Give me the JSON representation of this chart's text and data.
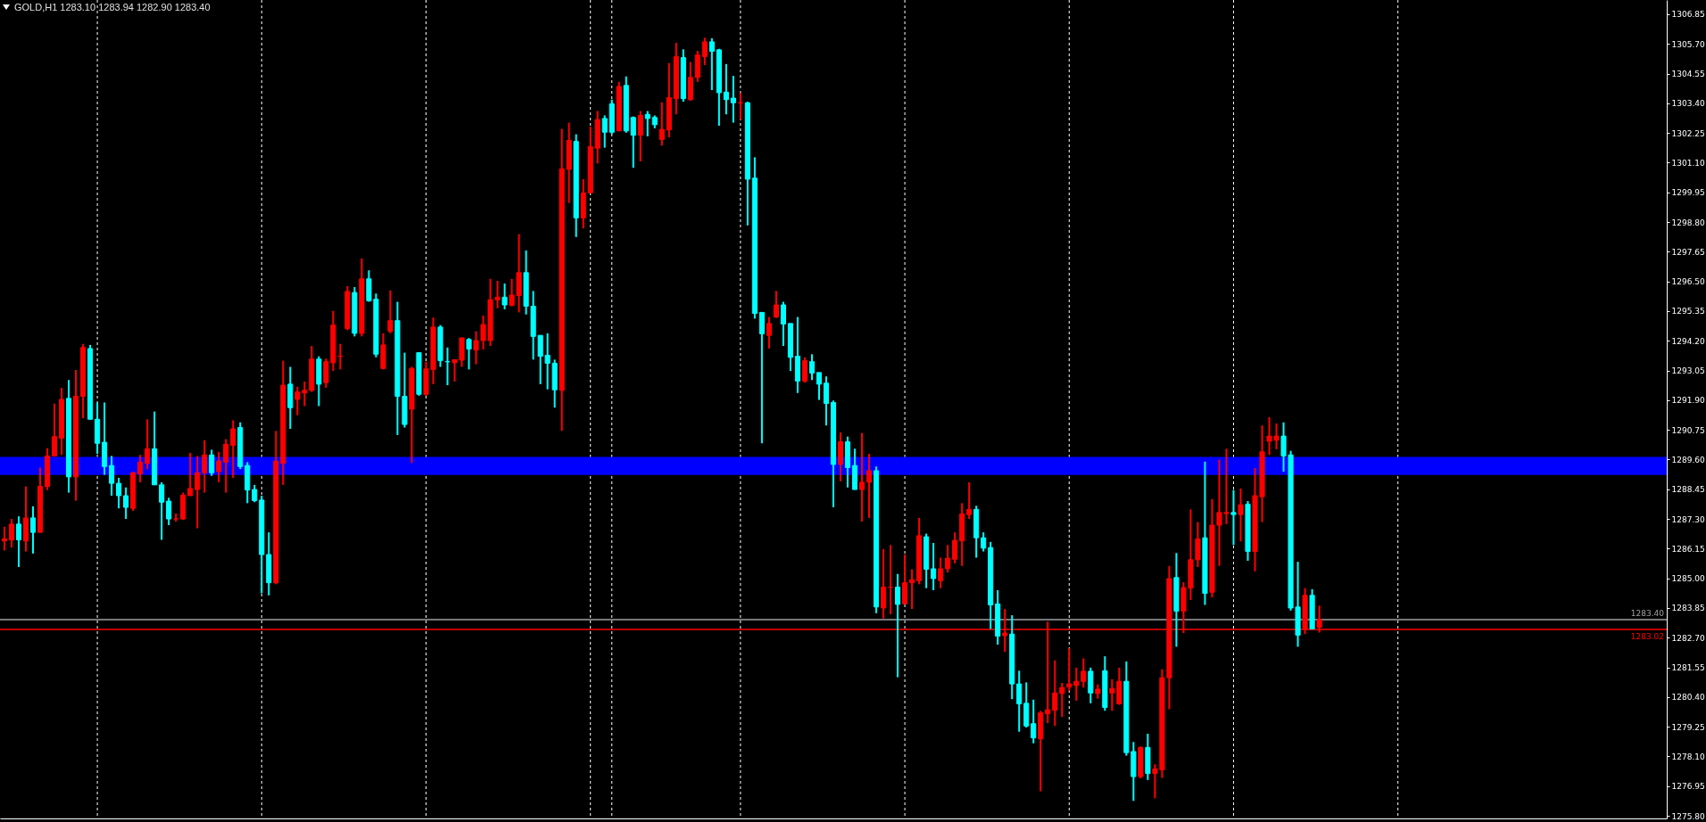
{
  "chart_data": {
    "type": "candlestick",
    "title": "GOLD,H1 1283.10 1283.94 1282.90 1283.40",
    "categories": [
      null,
      null,
      null,
      null,
      null,
      null,
      null,
      null,
      null,
      null,
      null,
      null,
      null,
      null,
      null,
      null,
      null,
      null,
      null,
      null,
      null,
      null,
      null,
      null,
      null,
      null,
      null,
      null,
      null,
      null,
      null,
      null,
      null,
      null,
      null,
      null,
      null,
      null,
      null,
      null,
      null,
      null,
      null,
      null,
      null,
      null,
      null,
      null,
      null,
      null,
      null,
      null,
      null,
      null,
      null,
      null,
      null,
      null,
      null,
      null,
      null,
      null,
      null,
      null,
      null,
      null,
      null,
      null,
      null,
      null,
      null,
      null,
      null,
      null,
      null,
      null,
      null,
      null,
      null,
      null,
      null,
      null,
      null,
      null,
      null,
      null,
      null,
      null,
      null,
      null,
      null,
      null,
      null,
      null,
      null,
      null,
      null,
      null,
      null,
      null,
      null,
      null,
      null,
      null,
      null,
      null,
      null,
      null,
      null,
      null,
      null,
      null,
      null,
      null,
      null,
      null,
      null,
      null,
      null,
      null,
      null,
      null,
      null,
      null,
      null,
      null,
      null,
      null,
      null,
      null,
      null,
      null,
      null,
      null,
      null,
      null,
      null,
      null,
      null,
      null,
      null,
      null,
      null,
      null,
      null,
      null,
      null,
      null,
      null,
      null,
      null,
      null,
      null,
      null,
      null,
      null,
      null,
      null,
      null,
      null,
      null,
      null,
      null,
      null,
      null,
      null,
      null,
      null,
      null,
      null,
      null,
      null,
      null,
      null,
      null,
      null,
      null,
      null,
      null,
      null,
      null,
      null,
      null,
      null,
      null,
      null,
      null,
      null,
      null,
      null,
      null,
      null,
      null,
      null,
      null,
      null,
      null,
      null,
      null,
      null,
      null,
      null,
      null,
      null,
      null,
      null,
      null,
      null,
      null,
      null,
      null,
      null,
      null,
      null,
      null,
      null,
      null,
      null,
      null,
      null,
      null,
      null,
      null,
      null,
      null,
      null,
      null,
      null,
      null,
      null,
      null,
      null,
      null
    ],
    "ohlc": [
      [
        1286.45,
        1287.0,
        1286.08,
        1286.53
      ],
      [
        1286.49,
        1287.3,
        1286.19,
        1287.1
      ],
      [
        1287.1,
        1287.4,
        1285.44,
        1286.49
      ],
      [
        1286.45,
        1288.56,
        1286.04,
        1287.34
      ],
      [
        1287.34,
        1287.79,
        1285.96,
        1286.78
      ],
      [
        1286.78,
        1289.29,
        1286.78,
        1288.56
      ],
      [
        1288.56,
        1290.04,
        1288.42,
        1289.74
      ],
      [
        1289.74,
        1291.77,
        1289.74,
        1290.49
      ],
      [
        1290.43,
        1292.38,
        1289.78,
        1291.93
      ],
      [
        1291.97,
        1292.68,
        1288.32,
        1288.93
      ],
      [
        1288.93,
        1293.07,
        1288.01,
        1292.05
      ],
      [
        1292.05,
        1294.08,
        1291.2,
        1293.94
      ],
      [
        1293.9,
        1294.04,
        1291.16,
        1291.16
      ],
      [
        1291.16,
        1291.81,
        1289.82,
        1290.23
      ],
      [
        1290.27,
        1291.81,
        1289.01,
        1289.33
      ],
      [
        1289.37,
        1289.74,
        1288.2,
        1288.68
      ],
      [
        1288.68,
        1288.89,
        1287.71,
        1288.2
      ],
      [
        1288.2,
        1288.52,
        1287.3,
        1287.75
      ],
      [
        1287.71,
        1289.13,
        1287.61,
        1289.09
      ],
      [
        1289.05,
        1289.78,
        1288.72,
        1289.5
      ],
      [
        1289.45,
        1291.16,
        1289.23,
        1290.02
      ],
      [
        1290.02,
        1291.46,
        1288.62,
        1288.62
      ],
      [
        1288.62,
        1288.72,
        1286.49,
        1287.95
      ],
      [
        1287.99,
        1288.12,
        1287.06,
        1287.3
      ],
      [
        1287.3,
        1287.51,
        1287.2,
        1287.3
      ],
      [
        1287.3,
        1288.32,
        1287.26,
        1288.22
      ],
      [
        1288.2,
        1289.86,
        1288.2,
        1288.48
      ],
      [
        1288.44,
        1289.74,
        1286.94,
        1289.09
      ],
      [
        1289.09,
        1290.35,
        1288.32,
        1289.78
      ],
      [
        1289.78,
        1289.98,
        1288.97,
        1289.09
      ],
      [
        1289.13,
        1289.9,
        1288.72,
        1289.54
      ],
      [
        1289.5,
        1290.39,
        1288.32,
        1290.19
      ],
      [
        1290.15,
        1291.12,
        1288.89,
        1290.79
      ],
      [
        1290.84,
        1291.04,
        1289.23,
        1289.33
      ],
      [
        1289.37,
        1289.5,
        1287.91,
        1288.42
      ],
      [
        1288.44,
        1288.62,
        1287.95,
        1288.01
      ],
      [
        1288.03,
        1288.2,
        1284.42,
        1285.92
      ],
      [
        1285.92,
        1286.78,
        1284.34,
        1284.83
      ],
      [
        1284.83,
        1290.71,
        1284.77,
        1289.54
      ],
      [
        1289.45,
        1293.43,
        1288.62,
        1292.48
      ],
      [
        1292.52,
        1293.19,
        1290.79,
        1291.61
      ],
      [
        1291.93,
        1292.42,
        1291.32,
        1292.22
      ],
      [
        1292.18,
        1292.62,
        1291.67,
        1292.28
      ],
      [
        1292.28,
        1294.0,
        1292.22,
        1293.49
      ],
      [
        1293.49,
        1293.6,
        1291.67,
        1292.52
      ],
      [
        1292.58,
        1293.51,
        1292.38,
        1293.39
      ],
      [
        1293.35,
        1295.36,
        1293.03,
        1294.81
      ],
      [
        1293.6,
        1294.08,
        1293.09,
        1293.6
      ],
      [
        1294.67,
        1296.32,
        1294.61,
        1296.11
      ],
      [
        1296.07,
        1296.28,
        1294.37,
        1294.49
      ],
      [
        1294.49,
        1297.39,
        1294.37,
        1296.6
      ],
      [
        1296.6,
        1296.93,
        1295.71,
        1295.75
      ],
      [
        1295.81,
        1296.03,
        1293.56,
        1293.68
      ],
      [
        1293.13,
        1294.49,
        1293.09,
        1294.04
      ],
      [
        1294.57,
        1296.15,
        1294.49,
        1294.98
      ],
      [
        1294.98,
        1295.71,
        1290.55,
        1292.05
      ],
      [
        1292.05,
        1293.74,
        1290.84,
        1290.96
      ],
      [
        1291.55,
        1293.19,
        1289.47,
        1293.13
      ],
      [
        1293.74,
        1293.74,
        1292.07,
        1292.13
      ],
      [
        1292.13,
        1293.39,
        1292.07,
        1293.11
      ],
      [
        1293.09,
        1295.1,
        1292.52,
        1294.73
      ],
      [
        1294.73,
        1294.81,
        1293.19,
        1293.43
      ],
      [
        1293.39,
        1293.94,
        1292.48,
        1293.39
      ],
      [
        1293.35,
        1293.47,
        1292.62,
        1293.47
      ],
      [
        1293.45,
        1294.33,
        1293.19,
        1294.31
      ],
      [
        1294.25,
        1294.31,
        1293.09,
        1293.88
      ],
      [
        1293.84,
        1294.57,
        1293.29,
        1294.21
      ],
      [
        1294.21,
        1295.18,
        1293.86,
        1294.83
      ],
      [
        1294.21,
        1296.6,
        1294.0,
        1295.79
      ],
      [
        1295.79,
        1296.52,
        1295.46,
        1295.89
      ],
      [
        1295.89,
        1296.42,
        1295.42,
        1295.59
      ],
      [
        1295.57,
        1296.6,
        1295.54,
        1295.97
      ],
      [
        1295.95,
        1298.33,
        1295.3,
        1296.84
      ],
      [
        1296.84,
        1297.7,
        1295.22,
        1295.54
      ],
      [
        1295.54,
        1296.13,
        1293.47,
        1294.37
      ],
      [
        1294.41,
        1294.41,
        1292.52,
        1293.6
      ],
      [
        1293.64,
        1294.49,
        1292.32,
        1293.33
      ],
      [
        1293.33,
        1293.47,
        1291.61,
        1292.3
      ],
      [
        1292.28,
        1302.41,
        1290.71,
        1300.86
      ],
      [
        1300.84,
        1302.65,
        1299.54,
        1301.96
      ],
      [
        1301.92,
        1302.2,
        1298.22,
        1298.96
      ],
      [
        1298.96,
        1300.46,
        1298.55,
        1299.93
      ],
      [
        1299.93,
        1302.49,
        1299.93,
        1301.72
      ],
      [
        1301.66,
        1303.1,
        1301.07,
        1302.77
      ],
      [
        1302.81,
        1302.93,
        1301.68,
        1302.28
      ],
      [
        1303.38,
        1303.54,
        1302.2,
        1302.28
      ],
      [
        1302.33,
        1304.23,
        1302.33,
        1304.05
      ],
      [
        1304.09,
        1304.44,
        1302.26,
        1302.33
      ],
      [
        1302.85,
        1302.89,
        1300.9,
        1302.16
      ],
      [
        1302.16,
        1303.1,
        1301.15,
        1302.93
      ],
      [
        1302.97,
        1303.1,
        1302.12,
        1302.81
      ],
      [
        1302.85,
        1302.93,
        1302.43,
        1302.57
      ],
      [
        1302.0,
        1303.44,
        1301.76,
        1302.39
      ],
      [
        1302.37,
        1304.96,
        1302.08,
        1303.62
      ],
      [
        1303.58,
        1305.74,
        1302.97,
        1305.21
      ],
      [
        1305.17,
        1305.49,
        1303.46,
        1303.58
      ],
      [
        1303.54,
        1305.0,
        1303.5,
        1304.4
      ],
      [
        1304.4,
        1305.43,
        1304.23,
        1305.27
      ],
      [
        1305.21,
        1305.94,
        1304.88,
        1305.78
      ],
      [
        1305.78,
        1305.92,
        1303.91,
        1305.41
      ],
      [
        1305.47,
        1305.51,
        1302.53,
        1303.81
      ],
      [
        1303.83,
        1304.92,
        1302.97,
        1303.54
      ],
      [
        1303.6,
        1304.46,
        1302.65,
        1303.42
      ],
      [
        1303.42,
        1303.79,
        1302.77,
        1303.42
      ],
      [
        1303.42,
        1303.46,
        1298.67,
        1300.46
      ],
      [
        1300.5,
        1301.31,
        1295.06,
        1295.26
      ],
      [
        1295.3,
        1295.3,
        1290.23,
        1294.47
      ],
      [
        1294.41,
        1295.12,
        1293.9,
        1294.87
      ],
      [
        1295.12,
        1296.13,
        1295.08,
        1295.59
      ],
      [
        1295.59,
        1295.71,
        1294.0,
        1294.85
      ],
      [
        1294.87,
        1294.87,
        1293.03,
        1293.56
      ],
      [
        1293.6,
        1295.12,
        1292.18,
        1292.64
      ],
      [
        1292.64,
        1293.56,
        1292.58,
        1293.43
      ],
      [
        1293.39,
        1293.68,
        1292.68,
        1292.95
      ],
      [
        1292.97,
        1292.97,
        1291.91,
        1292.52
      ],
      [
        1292.56,
        1292.82,
        1290.92,
        1291.77
      ],
      [
        1291.81,
        1291.89,
        1287.75,
        1289.41
      ],
      [
        1289.41,
        1290.65,
        1288.76,
        1290.29
      ],
      [
        1290.29,
        1290.49,
        1288.52,
        1289.29
      ],
      [
        1289.37,
        1290.02,
        1288.44,
        1288.44
      ],
      [
        1288.44,
        1290.63,
        1287.2,
        1288.72
      ],
      [
        1288.72,
        1289.82,
        1287.34,
        1289.17
      ],
      [
        1289.17,
        1289.33,
        1283.65,
        1283.89
      ],
      [
        1283.85,
        1286.13,
        1283.45,
        1284.66
      ],
      [
        1284.66,
        1286.29,
        1283.61,
        1284.66
      ],
      [
        1284.66,
        1285.17,
        1281.17,
        1283.99
      ],
      [
        1284.01,
        1285.92,
        1284.01,
        1284.83
      ],
      [
        1284.83,
        1285.35,
        1283.81,
        1284.95
      ],
      [
        1284.91,
        1287.34,
        1284.77,
        1286.65
      ],
      [
        1286.61,
        1286.73,
        1284.62,
        1285.35
      ],
      [
        1285.37,
        1286.37,
        1284.54,
        1284.99
      ],
      [
        1284.91,
        1285.8,
        1284.62,
        1285.37
      ],
      [
        1285.37,
        1286.29,
        1285.23,
        1285.78
      ],
      [
        1285.74,
        1286.78,
        1285.58,
        1286.47
      ],
      [
        1286.45,
        1287.91,
        1285.48,
        1287.49
      ],
      [
        1287.47,
        1288.72,
        1287.3,
        1287.67
      ],
      [
        1287.67,
        1287.81,
        1285.8,
        1286.57
      ],
      [
        1286.57,
        1286.78,
        1286.04,
        1286.17
      ],
      [
        1286.19,
        1286.41,
        1283.04,
        1283.97
      ],
      [
        1284.01,
        1284.54,
        1282.43,
        1282.76
      ],
      [
        1282.78,
        1283.81,
        1282.15,
        1282.88
      ],
      [
        1282.84,
        1283.57,
        1280.32,
        1280.91
      ],
      [
        1280.91,
        1281.42,
        1279.06,
        1280.14
      ],
      [
        1280.16,
        1280.97,
        1279.22,
        1279.28
      ],
      [
        1279.37,
        1280.3,
        1278.61,
        1278.82
      ],
      [
        1278.78,
        1279.87,
        1276.75,
        1279.79
      ],
      [
        1279.75,
        1283.32,
        1279.39,
        1279.91
      ],
      [
        1279.89,
        1281.82,
        1279.28,
        1280.56
      ],
      [
        1280.54,
        1280.95,
        1279.63,
        1280.77
      ],
      [
        1280.79,
        1282.29,
        1280.64,
        1280.91
      ],
      [
        1280.85,
        1281.54,
        1280.26,
        1281.01
      ],
      [
        1281.01,
        1281.9,
        1280.77,
        1281.4
      ],
      [
        1281.4,
        1281.54,
        1280.16,
        1280.56
      ],
      [
        1280.54,
        1280.89,
        1280.34,
        1280.71
      ],
      [
        1281.42,
        1281.98,
        1279.87,
        1280.0
      ],
      [
        1280.56,
        1281.09,
        1279.87,
        1280.73
      ],
      [
        1280.14,
        1281.54,
        1280.1,
        1281.01
      ],
      [
        1281.01,
        1281.78,
        1278.13,
        1278.25
      ],
      [
        1278.29,
        1278.66,
        1276.38,
        1277.32
      ],
      [
        1277.32,
        1278.49,
        1277.25,
        1278.45
      ],
      [
        1278.45,
        1278.98,
        1277.19,
        1277.44
      ],
      [
        1277.44,
        1277.8,
        1276.48,
        1277.62
      ],
      [
        1277.58,
        1281.48,
        1277.27,
        1281.15
      ],
      [
        1281.15,
        1285.48,
        1279.93,
        1284.99
      ],
      [
        1285.03,
        1285.98,
        1282.35,
        1283.73
      ],
      [
        1283.73,
        1284.85,
        1282.88,
        1284.64
      ],
      [
        1284.62,
        1287.67,
        1284.16,
        1285.72
      ],
      [
        1285.72,
        1287.18,
        1285.44,
        1286.53
      ],
      [
        1286.57,
        1289.52,
        1283.97,
        1284.42
      ],
      [
        1284.46,
        1288.07,
        1284.26,
        1287.06
      ],
      [
        1287.06,
        1289.6,
        1285.48,
        1287.55
      ],
      [
        1287.51,
        1290.02,
        1287.1,
        1287.55
      ],
      [
        1287.55,
        1288.42,
        1286.29,
        1287.47
      ],
      [
        1287.47,
        1288.48,
        1286.43,
        1287.85
      ],
      [
        1287.87,
        1287.99,
        1285.68,
        1286.04
      ],
      [
        1286.04,
        1289.27,
        1285.27,
        1288.2
      ],
      [
        1288.16,
        1290.92,
        1287.18,
        1289.9
      ],
      [
        1290.31,
        1291.24,
        1289.78,
        1290.51
      ],
      [
        1290.35,
        1291.0,
        1290.0,
        1290.51
      ],
      [
        1290.51,
        1291.04,
        1289.13,
        1289.74
      ],
      [
        1289.78,
        1289.94,
        1283.75,
        1283.85
      ],
      [
        1283.89,
        1285.64,
        1282.35,
        1282.8
      ],
      [
        1283.04,
        1284.62,
        1282.84,
        1284.34
      ],
      [
        1284.34,
        1284.58,
        1283.04,
        1283.04
      ],
      [
        1283.1,
        1283.94,
        1282.9,
        1283.4
      ],
      null,
      null,
      null,
      null,
      null,
      null,
      null,
      null,
      null,
      null,
      null,
      null,
      null,
      null,
      null,
      null,
      null,
      null,
      null,
      null,
      null,
      null,
      null,
      null,
      null,
      null,
      null,
      null,
      null,
      null,
      null,
      null,
      null,
      null,
      null,
      null,
      null,
      null,
      null,
      null,
      null,
      null,
      null,
      null,
      null,
      null,
      null,
      null
    ],
    "colors": [
      "#ff0000",
      "#ff0000",
      "#00ffff",
      "#ff0000",
      "#00ffff",
      "#ff0000",
      "#ff0000",
      "#ff0000",
      "#ff0000",
      "#00ffff",
      "#ff0000",
      "#ff0000",
      "#00ffff",
      "#00ffff",
      "#00ffff",
      "#00ffff",
      "#00ffff",
      "#00ffff",
      "#ff0000",
      "#ff0000",
      "#ff0000",
      "#00ffff",
      "#00ffff",
      "#00ffff",
      "#ff0000",
      "#ff0000",
      "#ff0000",
      "#ff0000",
      "#ff0000",
      "#00ffff",
      "#ff0000",
      "#ff0000",
      "#ff0000",
      "#00ffff",
      "#00ffff",
      "#00ffff",
      "#00ffff",
      "#00ffff",
      "#ff0000",
      "#ff0000",
      "#00ffff",
      "#ff0000",
      "#ff0000",
      "#ff0000",
      "#00ffff",
      "#ff0000",
      "#ff0000",
      "#ff0000",
      "#ff0000",
      "#00ffff",
      "#ff0000",
      "#00ffff",
      "#00ffff",
      "#ff0000",
      "#ff0000",
      "#00ffff",
      "#00ffff",
      "#ff0000",
      "#00ffff",
      "#ff0000",
      "#ff0000",
      "#00ffff",
      "#00ffff",
      "#ff0000",
      "#ff0000",
      "#00ffff",
      "#ff0000",
      "#ff0000",
      "#ff0000",
      "#ff0000",
      "#00ffff",
      "#ff0000",
      "#ff0000",
      "#00ffff",
      "#00ffff",
      "#00ffff",
      "#00ffff",
      "#00ffff",
      "#ff0000",
      "#ff0000",
      "#00ffff",
      "#ff0000",
      "#ff0000",
      "#ff0000",
      "#00ffff",
      "#00ffff",
      "#ff0000",
      "#00ffff",
      "#00ffff",
      "#ff0000",
      "#00ffff",
      "#00ffff",
      "#ff0000",
      "#ff0000",
      "#ff0000",
      "#00ffff",
      "#ff0000",
      "#ff0000",
      "#ff0000",
      "#00ffff",
      "#00ffff",
      "#00ffff",
      "#00ffff",
      "#ff0000",
      "#00ffff",
      "#00ffff",
      "#00ffff",
      "#ff0000",
      "#ff0000",
      "#00ffff",
      "#00ffff",
      "#00ffff",
      "#ff0000",
      "#00ffff",
      "#00ffff",
      "#00ffff",
      "#00ffff",
      "#ff0000",
      "#00ffff",
      "#00ffff",
      "#ff0000",
      "#ff0000",
      "#00ffff",
      "#ff0000",
      "#ff0000",
      "#00ffff",
      "#ff0000",
      "#ff0000",
      "#ff0000",
      "#00ffff",
      "#00ffff",
      "#ff0000",
      "#ff0000",
      "#ff0000",
      "#ff0000",
      "#ff0000",
      "#00ffff",
      "#00ffff",
      "#00ffff",
      "#00ffff",
      "#ff0000",
      "#00ffff",
      "#00ffff",
      "#00ffff",
      "#00ffff",
      "#ff0000",
      "#ff0000",
      "#ff0000",
      "#ff0000",
      "#ff0000",
      "#ff0000",
      "#ff0000",
      "#00ffff",
      "#ff0000",
      "#00ffff",
      "#ff0000",
      "#ff0000",
      "#00ffff",
      "#00ffff",
      "#ff0000",
      "#00ffff",
      "#ff0000",
      "#ff0000",
      "#ff0000",
      "#00ffff",
      "#ff0000",
      "#ff0000",
      "#ff0000",
      "#00ffff",
      "#ff0000",
      "#ff0000",
      "#ff0000",
      "#00ffff",
      "#ff0000",
      "#00ffff",
      "#ff0000",
      "#ff0000",
      "#ff0000",
      "#ff0000",
      "#00ffff",
      "#00ffff",
      "#00ffff",
      "#ff0000",
      "#00ffff",
      "#ff0000",
      null,
      null,
      null,
      null,
      null,
      null,
      null,
      null,
      null,
      null,
      null,
      null,
      null,
      null,
      null,
      null,
      null,
      null,
      null,
      null,
      null,
      null,
      null,
      null,
      null,
      null,
      null,
      null,
      null,
      null,
      null,
      null,
      null,
      null,
      null,
      null,
      null,
      null,
      null,
      null,
      null,
      null,
      null,
      null,
      null,
      null,
      null,
      null
    ],
    "ylim": [
      1275.7,
      1307.4
    ],
    "yticks": [
      {
        "value": 1275.8,
        "label": "1275.80"
      },
      1276.95,
      {
        "value": 1278.1,
        "label": "1278.10"
      },
      1279.25,
      {
        "value": 1280.4,
        "label": "1280.40"
      },
      1281.55,
      {
        "value": 1282.7,
        "label": "1282.70"
      },
      1283.85,
      {
        "value": 1285,
        "label": "1285.00"
      },
      1286.15,
      {
        "value": 1287.3,
        "label": "1287.30"
      },
      1288.45,
      {
        "value": 1289.6,
        "label": "1289.60"
      },
      1290.75,
      {
        "value": 1291.9,
        "label": "1291.90"
      },
      1293.05,
      {
        "value": 1294.2,
        "label": "1294.20"
      },
      1295.35,
      {
        "value": 1296.5,
        "label": "1296.50"
      },
      1297.65,
      {
        "value": 1298.8,
        "label": "1298.80"
      },
      1299.95,
      {
        "value": 1301.1,
        "label": "1301.10"
      },
      1302.25,
      {
        "value": 1303.4,
        "label": "1303.40"
      },
      1304.55,
      {
        "value": 1305.7,
        "label": "1305.70"
      },
      1306.85
    ],
    "tick_labels": "y",
    "ref_lines": [
      {
        "axis": "y",
        "value": 1283.4,
        "label": "1283.40",
        "color": "#a0a0a4"
      },
      {
        "axis": "y",
        "value": 1283.02,
        "label": "1283.02",
        "color": "#ff0000"
      }
    ],
    "bands": [
      {
        "axis": "y",
        "from": 1289.0,
        "to": 1289.7,
        "color": "#0000ff"
      }
    ]
  }
}
